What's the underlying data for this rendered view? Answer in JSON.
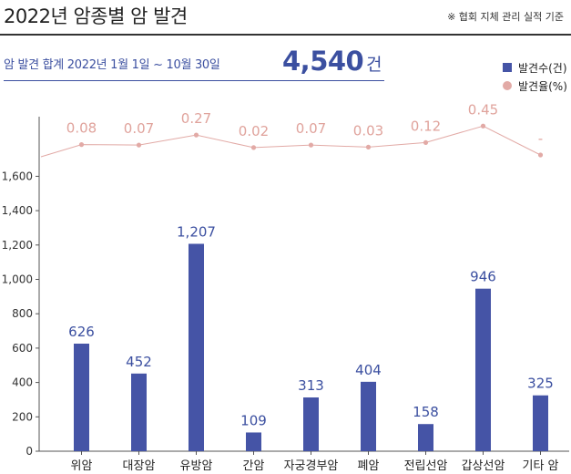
{
  "header": {
    "title": "2022년 암종별 암 발견",
    "note": "※ 협회 지체 관리 실적 기준"
  },
  "summary": {
    "label": "암 발견 합계  2022년 1월 1일 ~ 10월 30일",
    "total": "4,540",
    "unit": "건"
  },
  "legend": {
    "bar": "발견수(건)",
    "rate": "발견율(%)"
  },
  "colors": {
    "bar": "#4554a6",
    "rate_line": "#e2aaa6",
    "rate_text": "#e0a39c"
  },
  "chart_data": {
    "type": "bar",
    "categories": [
      "위암",
      "대장암",
      "유방암",
      "간암",
      "자궁경부암",
      "폐암",
      "전립선암",
      "갑상선암",
      "기타 암"
    ],
    "ylim": [
      0,
      1800
    ],
    "yticks": [
      0,
      200,
      400,
      600,
      800,
      1000,
      1200,
      1400,
      1600
    ],
    "ytick_labels": [
      "0",
      "200",
      "400",
      "600",
      "800",
      "1,000",
      "1,200",
      "1,400",
      "1,600"
    ],
    "grid": false,
    "series": [
      {
        "name": "발견수(건)",
        "kind": "bar",
        "values": [
          626,
          452,
          1207,
          109,
          313,
          404,
          158,
          946,
          325
        ],
        "labels": [
          "626",
          "452",
          "1,207",
          "109",
          "313",
          "404",
          "158",
          "946",
          "325"
        ]
      },
      {
        "name": "발견율(%)",
        "kind": "line",
        "values": [
          0.08,
          0.07,
          0.27,
          0.02,
          0.07,
          0.03,
          0.12,
          0.45,
          null
        ],
        "labels": [
          "0.08",
          "0.07",
          "0.27",
          "0.02",
          "0.07",
          "0.03",
          "0.12",
          "0.45",
          "-"
        ]
      }
    ]
  }
}
